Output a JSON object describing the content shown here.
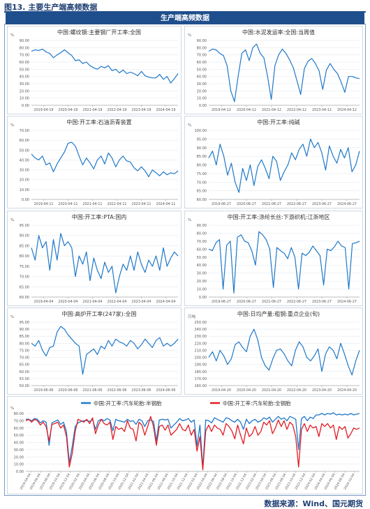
{
  "figure_title": "图13. 主要生产端高频数据",
  "banner": "生产端高频数据",
  "source": "数据来源：Wind、国元期货",
  "colors": {
    "line": "#1f78c8",
    "red": "#e31b23",
    "grid": "#dde3ea",
    "axis": "#888888"
  },
  "chart_data": [
    {
      "type": "line",
      "title": "中国:螺纹钢:主要钢厂开工率:全国",
      "unit": "%",
      "ylim": [
        0,
        90
      ],
      "yticks": [
        "0.00",
        "10.00",
        "20.00",
        "30.00",
        "40.00",
        "50.00",
        "60.00",
        "70.00",
        "80.00",
        "90.00"
      ],
      "xticks": [
        "2019-04-19",
        "2020-04-19",
        "2021-04-19",
        "2022-04-19",
        "2023-04-19",
        "2024-04-19"
      ],
      "series": [
        {
          "values": [
            75,
            77,
            76,
            78,
            74,
            72,
            66,
            70,
            73,
            77,
            73,
            69,
            62,
            63,
            58,
            60,
            55,
            52,
            50,
            54,
            52,
            55,
            48,
            50,
            45,
            49,
            44,
            46,
            44,
            41,
            47,
            41,
            39,
            38,
            38,
            43,
            36,
            40,
            31,
            37,
            44
          ]
        }
      ]
    },
    {
      "type": "line",
      "title": "中国:水泥发运率:全国:当周值",
      "unit": "%",
      "ylim": [
        0,
        90
      ],
      "yticks": [
        "0.00",
        "10.00",
        "20.00",
        "30.00",
        "40.00",
        "50.00",
        "60.00",
        "70.00",
        "80.00",
        "90.00"
      ],
      "xticks": [
        "2019-04-12",
        "2020-04-12",
        "2021-04-12",
        "2022-04-12",
        "2023-04-12",
        "2024-04-12"
      ],
      "series": [
        {
          "values": [
            75,
            78,
            77,
            72,
            69,
            55,
            20,
            5,
            40,
            72,
            77,
            62,
            80,
            85,
            72,
            66,
            40,
            8,
            55,
            70,
            78,
            72,
            63,
            52,
            34,
            15,
            51,
            61,
            65,
            58,
            48,
            22,
            49,
            58,
            50,
            44,
            32,
            18,
            40,
            40,
            38,
            37
          ]
        }
      ]
    },
    {
      "type": "line",
      "title": "中国:开工率:石油沥青装置",
      "unit": "%",
      "ylim": [
        0,
        70
      ],
      "yticks": [
        "0.00",
        "10.00",
        "20.00",
        "30.00",
        "40.00",
        "50.00",
        "60.00",
        "70.00"
      ],
      "xticks": [
        "2019-04-11",
        "2020-04-11",
        "2021-04-11",
        "2022-04-11",
        "2023-04-11",
        "2024-04-11"
      ],
      "series": [
        {
          "values": [
            46,
            42,
            40,
            44,
            35,
            37,
            28,
            36,
            42,
            48,
            57,
            58,
            54,
            44,
            35,
            42,
            37,
            31,
            40,
            44,
            36,
            47,
            42,
            33,
            40,
            44,
            39,
            38,
            32,
            29,
            33,
            29,
            23,
            30,
            27,
            24,
            28,
            25,
            27,
            26,
            29
          ]
        }
      ]
    },
    {
      "type": "line",
      "title": "中国:开工率:纯碱",
      "unit": "%",
      "ylim": [
        60,
        100
      ],
      "yticks": [
        "60.00",
        "65.00",
        "70.00",
        "75.00",
        "80.00",
        "85.00",
        "90.00",
        "95.00",
        "100.00"
      ],
      "xticks": [
        "2019-06-27",
        "2020-06-27",
        "2021-06-27",
        "2022-06-27",
        "2023-06-27",
        "2024-06-27"
      ],
      "series": [
        {
          "values": [
            84,
            88,
            80,
            92,
            85,
            74,
            81,
            70,
            64,
            78,
            71,
            80,
            68,
            79,
            83,
            78,
            72,
            85,
            82,
            71,
            76,
            80,
            87,
            83,
            89,
            92,
            85,
            95,
            90,
            93,
            87,
            77,
            91,
            85,
            81,
            89,
            84,
            90,
            76,
            80,
            88
          ]
        }
      ]
    },
    {
      "type": "line",
      "title": "中国:开工率:PTA:国内",
      "unit": "%",
      "ylim": [
        60,
        95
      ],
      "yticks": [
        "60.00",
        "65.00",
        "70.00",
        "75.00",
        "80.00",
        "85.00",
        "90.00",
        "95.00"
      ],
      "xticks": [
        "2019-04-04",
        "2020-04-04",
        "2021-04-04",
        "2022-04-04",
        "2023-04-04",
        "2024-04-04"
      ],
      "series": [
        {
          "values": [
            84,
            78,
            90,
            84,
            87,
            73,
            88,
            78,
            91,
            85,
            87,
            84,
            70,
            80,
            76,
            82,
            68,
            79,
            73,
            69,
            77,
            72,
            75,
            62,
            70,
            76,
            73,
            80,
            73,
            82,
            76,
            72,
            78,
            75,
            80,
            73,
            84,
            75,
            79,
            82,
            80
          ]
        }
      ]
    },
    {
      "type": "line",
      "title": "中国:开工率:涤纶长丝:下游织机:江浙地区",
      "unit": "%",
      "ylim": [
        0,
        90
      ],
      "yticks": [
        "0.00",
        "10.00",
        "20.00",
        "30.00",
        "40.00",
        "50.00",
        "60.00",
        "70.00",
        "80.00",
        "90.00"
      ],
      "xticks": [
        "2019-06-27",
        "2020-06-27",
        "2021-06-27",
        "2022-06-27",
        "2023-06-27",
        "2024-06-27"
      ],
      "series": [
        {
          "values": [
            60,
            58,
            68,
            72,
            10,
            65,
            70,
            5,
            75,
            78,
            70,
            68,
            58,
            40,
            82,
            78,
            72,
            60,
            12,
            62,
            58,
            55,
            48,
            62,
            50,
            10,
            55,
            52,
            56,
            64,
            58,
            52,
            15,
            60,
            58,
            63,
            70,
            64,
            62,
            10,
            67,
            68,
            70
          ]
        }
      ]
    },
    {
      "type": "line",
      "title": "中国:高炉开工率(247家):全国",
      "unit": "%",
      "ylim": [
        50,
        95
      ],
      "yticks": [
        "50.00",
        "55.00",
        "60.00",
        "65.00",
        "70.00",
        "75.00",
        "80.00",
        "85.00",
        "90.00",
        "95.00"
      ],
      "xticks": [
        "2019-06-06",
        "2020-06-06",
        "2021-06-06",
        "2022-06-06",
        "2023-06-06",
        "2024-06-06"
      ],
      "series": [
        {
          "values": [
            80,
            78,
            82,
            75,
            71,
            77,
            78,
            88,
            92,
            90,
            86,
            83,
            80,
            78,
            58,
            72,
            74,
            76,
            72,
            78,
            76,
            82,
            78,
            83,
            81,
            80,
            78,
            82,
            80,
            76,
            79,
            83,
            80,
            77,
            82,
            84,
            78,
            80,
            78,
            80,
            83
          ]
        }
      ]
    },
    {
      "type": "line",
      "title": "中国:日均产量:粗钢:重点企业(旬)",
      "unit": "万吨",
      "ylim": [
        160,
        250
      ],
      "yticks": [
        "160.00",
        "170.00",
        "180.00",
        "190.00",
        "200.00",
        "210.00",
        "220.00",
        "230.00",
        "240.00",
        "250.00"
      ],
      "xticks": [
        "2019-04-20",
        "2020-04-20",
        "2021-04-20",
        "2022-04-20",
        "2023-04-20",
        "2024-04-20"
      ],
      "series": [
        {
          "values": [
            200,
            208,
            195,
            210,
            202,
            190,
            198,
            218,
            222,
            214,
            208,
            230,
            240,
            225,
            200,
            188,
            182,
            198,
            210,
            212,
            205,
            195,
            188,
            210,
            222,
            215,
            200,
            195,
            202,
            212,
            180,
            205,
            215,
            210,
            198,
            220,
            205,
            188,
            175,
            195,
            210
          ]
        }
      ]
    },
    {
      "type": "line",
      "title": "",
      "unit": "%",
      "ylim": [
        0,
        80
      ],
      "yticks": [
        "0.00",
        "10.00",
        "20.00",
        "30.00",
        "40.00",
        "50.00",
        "60.00",
        "70.00",
        "80.00"
      ],
      "xticks": [
        "2019-04-04",
        "2019-06-04",
        "2019-08-04",
        "2019-10-04",
        "2019-12-04",
        "2020-02-04",
        "2020-04-04",
        "2020-06-04",
        "2020-08-04",
        "2020-10-04",
        "2020-12-04",
        "2021-02-04",
        "2021-04-04",
        "2021-06-04",
        "2021-08-04",
        "2021-10-04",
        "2021-12-04",
        "2022-02-04",
        "2022-04-04",
        "2022-06-04",
        "2022-08-04",
        "2022-10-04",
        "2022-12-04",
        "2023-02-04",
        "2023-04-04",
        "2023-06-04",
        "2023-08-04",
        "2023-10-04",
        "2023-12-04",
        "2024-02-04",
        "2024-04-04",
        "2024-06-04",
        "2024-08-04",
        "2024-10-04"
      ],
      "legend": "top",
      "series": [
        {
          "name": "中国:开工率:汽车轮胎:半钢胎",
          "color": "#1f78c8",
          "values": [
            72,
            72,
            70,
            73,
            72,
            67,
            70,
            68,
            36,
            67,
            69,
            71,
            65,
            68,
            55,
            12,
            35,
            62,
            67,
            69,
            70,
            70,
            69,
            72,
            58,
            70,
            72,
            70,
            73,
            71,
            56,
            72,
            70,
            69,
            68,
            72,
            69,
            70,
            65,
            72,
            70,
            62,
            70,
            71,
            69,
            42,
            71,
            72,
            71,
            72,
            60,
            64,
            68,
            73,
            70,
            71,
            73,
            68,
            71,
            35,
            64,
            5,
            71,
            70,
            67,
            74,
            72,
            70,
            68,
            74,
            73,
            70,
            68,
            72,
            68,
            58,
            72,
            66,
            70,
            72,
            68,
            70,
            74,
            72,
            75,
            68,
            72,
            76,
            72,
            74,
            70,
            76,
            74,
            72,
            30,
            73,
            76,
            70,
            75,
            73,
            78,
            78,
            80,
            78,
            80,
            79,
            81,
            78,
            79,
            78,
            79,
            78,
            80,
            78,
            79,
            80
          ]
        },
        {
          "name": "中国:开工率:汽车轮胎:全钢胎",
          "color": "#e31b23",
          "values": [
            70,
            72,
            68,
            72,
            70,
            64,
            68,
            62,
            42,
            65,
            66,
            68,
            60,
            64,
            48,
            6,
            25,
            55,
            72,
            70,
            68,
            72,
            66,
            74,
            52,
            64,
            72,
            66,
            64,
            68,
            44,
            62,
            58,
            60,
            55,
            70,
            60,
            58,
            42,
            68,
            64,
            50,
            62,
            76,
            62,
            36,
            62,
            64,
            57,
            64,
            50,
            54,
            58,
            66,
            58,
            56,
            64,
            50,
            58,
            28,
            48,
            2,
            56,
            64,
            55,
            64,
            60,
            58,
            50,
            66,
            62,
            56,
            45,
            64,
            50,
            38,
            60,
            48,
            52,
            62,
            50,
            55,
            68,
            64,
            70,
            52,
            60,
            71,
            62,
            70,
            58,
            68,
            64,
            48,
            6,
            58,
            66,
            55,
            64,
            60,
            62,
            48,
            66,
            62,
            66,
            60,
            64,
            44,
            62,
            58,
            62,
            46,
            52,
            60,
            58,
            60
          ]
        }
      ]
    }
  ]
}
